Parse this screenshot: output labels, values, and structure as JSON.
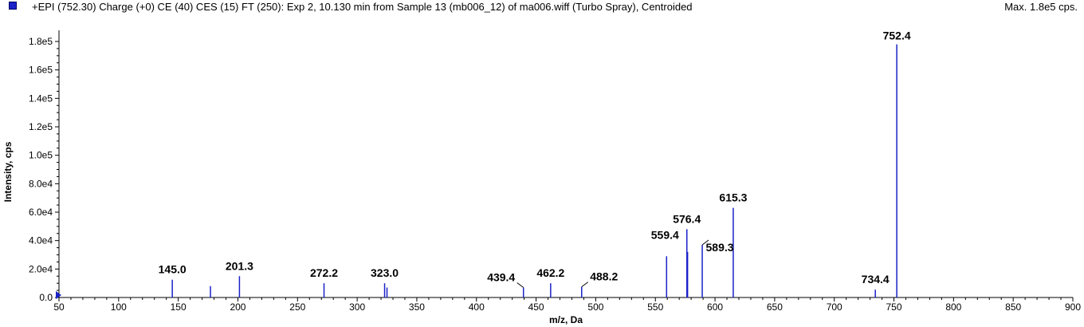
{
  "header": {
    "title": "+EPI (752.30) Charge (+0) CE (40) CES (15) FT (250): Exp 2, 10.130 min from Sample 13 (mb006_12) of ma006.wiff (Turbo Spray), Centroided",
    "max": "Max. 1.8e5 cps.",
    "series_color": "#1a22c8"
  },
  "chart_data": {
    "type": "bar",
    "xlabel": "m/z, Da",
    "ylabel": "Intensity, cps",
    "xlim": [
      50,
      900
    ],
    "ylim": [
      0,
      180000
    ],
    "xticks": [
      50,
      100,
      150,
      200,
      250,
      300,
      350,
      400,
      450,
      500,
      550,
      600,
      650,
      700,
      750,
      800,
      850,
      900
    ],
    "yticks": [
      0,
      20000,
      40000,
      60000,
      80000,
      100000,
      120000,
      140000,
      160000,
      180000
    ],
    "ytick_labels": [
      "0.0",
      "2.0e4",
      "4.0e4",
      "6.0e4",
      "8.0e4",
      "1.0e5",
      "1.2e5",
      "1.4e5",
      "1.6e5",
      "1.8e5"
    ],
    "peaks": [
      {
        "x": 145.0,
        "y": 12500,
        "label": "145.0"
      },
      {
        "x": 177.0,
        "y": 8000,
        "label": ""
      },
      {
        "x": 201.3,
        "y": 15000,
        "label": "201.3"
      },
      {
        "x": 272.2,
        "y": 10000,
        "label": "272.2"
      },
      {
        "x": 323.0,
        "y": 10000,
        "label": "323.0"
      },
      {
        "x": 325.0,
        "y": 7000,
        "label": ""
      },
      {
        "x": 439.4,
        "y": 7000,
        "label": "439.4"
      },
      {
        "x": 462.2,
        "y": 10000,
        "label": "462.2"
      },
      {
        "x": 488.2,
        "y": 7500,
        "label": "488.2"
      },
      {
        "x": 559.4,
        "y": 29000,
        "label": "559.4"
      },
      {
        "x": 576.4,
        "y": 48000,
        "label": "576.4"
      },
      {
        "x": 577.0,
        "y": 32000,
        "label": ""
      },
      {
        "x": 589.3,
        "y": 37000,
        "label": "589.3"
      },
      {
        "x": 615.3,
        "y": 63000,
        "label": "615.3"
      },
      {
        "x": 734.4,
        "y": 5500,
        "label": "734.4"
      },
      {
        "x": 752.4,
        "y": 178000,
        "label": "752.4"
      }
    ]
  }
}
